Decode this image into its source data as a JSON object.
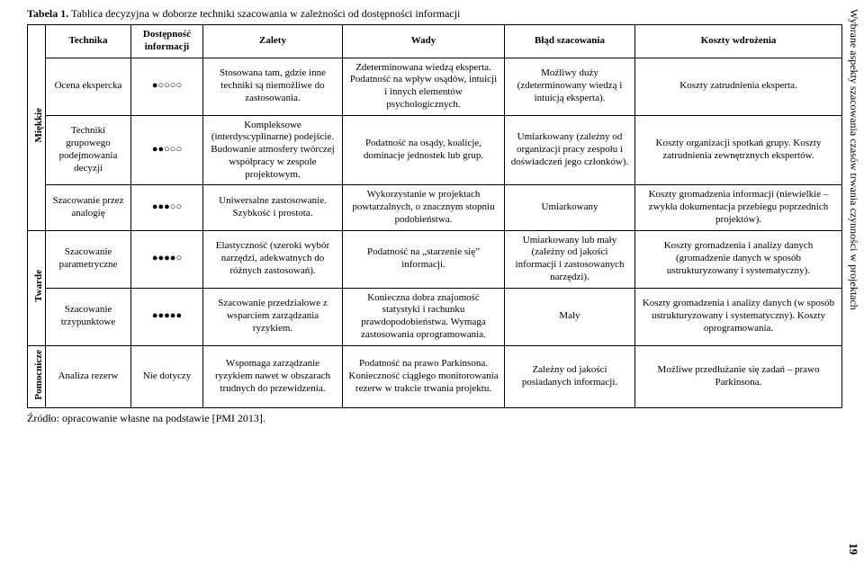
{
  "caption_label": "Tabela 1.",
  "caption_text": " Tablica decyzyjna w doborze techniki szacowania w zależności od dostępności informacji",
  "side_title": "Wybrane aspekty szacowania czasów trwania czynności w projektach",
  "page_number": "19",
  "source": "Źródło: opracowanie własne na podstawie [PMI 2013].",
  "headers": {
    "technika": "Technika",
    "dostepnosc": "Dostępność informacji",
    "zalety": "Zalety",
    "wady": "Wady",
    "blad": "Błąd szacowania",
    "koszty": "Koszty wdrożenia"
  },
  "groups": {
    "miekkie": "Miękkie",
    "twarde": "Twarde",
    "pomocnicze": "Pomocnicze"
  },
  "rows": [
    {
      "technika": "Ocena ekspercka",
      "dost": "●○○○○",
      "zalety": "Stosowana tam, gdzie inne techniki są niemożliwe do zastosowania.",
      "wady": "Zdeterminowana wiedzą eksperta. Podatność na wpływ osądów, intuicji i innych elementów psychologicznych.",
      "blad": "Możliwy duży (zdeterminowany wiedzą i intuicją eksperta).",
      "koszty": "Koszty zatrudnienia eksperta."
    },
    {
      "technika": "Techniki grupowego podejmowania decyzji",
      "dost": "●●○○○",
      "zalety": "Kompleksowe (interdyscyplinarne) podejście. Budowanie atmosfery twórczej współpracy w zespole projektowym.",
      "wady": "Podatność na osądy, koalicje, dominacje jednostek lub grup.",
      "blad": "Umiarkowany (zależny od organizacji pracy zespołu i doświadczeń jego członków).",
      "koszty": "Koszty organizacji spotkań grupy. Koszty zatrudnienia zewnętrznych ekspertów."
    },
    {
      "technika": "Szacowanie przez analogię",
      "dost": "●●●○○",
      "zalety": "Uniwersalne zastosowanie. Szybkość i prostota.",
      "wady": "Wykorzystanie w projektach powtarzalnych, o znacznym stopniu podobieństwa.",
      "blad": "Umiarkowany",
      "koszty": "Koszty gromadzenia informacji (niewielkie – zwykła dokumentacja przebiegu poprzednich projektów)."
    },
    {
      "technika": "Szacowanie parametryczne",
      "dost": "●●●●○",
      "zalety": "Elastyczność (szeroki wybór narzędzi, adekwatnych do różnych zastosowań).",
      "wady": "Podatność na „starzenie się” informacji.",
      "blad": "Umiarkowany lub mały (zależny od jakości informacji i zastosowanych narzędzi).",
      "koszty": "Koszty gromadzenia i analizy danych (gromadzenie danych w sposób ustrukturyzowany i systematyczny)."
    },
    {
      "technika": "Szacowanie trzypunktowe",
      "dost": "●●●●●",
      "zalety": "Szacowanie przedziałowe z wsparciem zarządzania ryzykiem.",
      "wady": "Konieczna dobra znajomość statystyki i rachunku prawdopodobieństwa. Wymaga zastosowania oprogramowania.",
      "blad": "Mały",
      "koszty": "Koszty gromadzenia i analizy danych (w sposób ustrukturyzowany i systematyczny). Koszty oprogramowania."
    },
    {
      "technika": "Analiza rezerw",
      "dost": "Nie dotyczy",
      "zalety": "Wspomaga zarządzanie ryzykiem nawet w obszarach trudnych do przewidzenia.",
      "wady": "Podatność na prawo Parkinsona. Konieczność ciągłego monitorowania rezerw w trakcie trwania projektu.",
      "blad": "Zależny od jakości posiadanych informacji.",
      "koszty": "Możliwe przedłużanie się zadań – prawo Parkinsona."
    }
  ]
}
